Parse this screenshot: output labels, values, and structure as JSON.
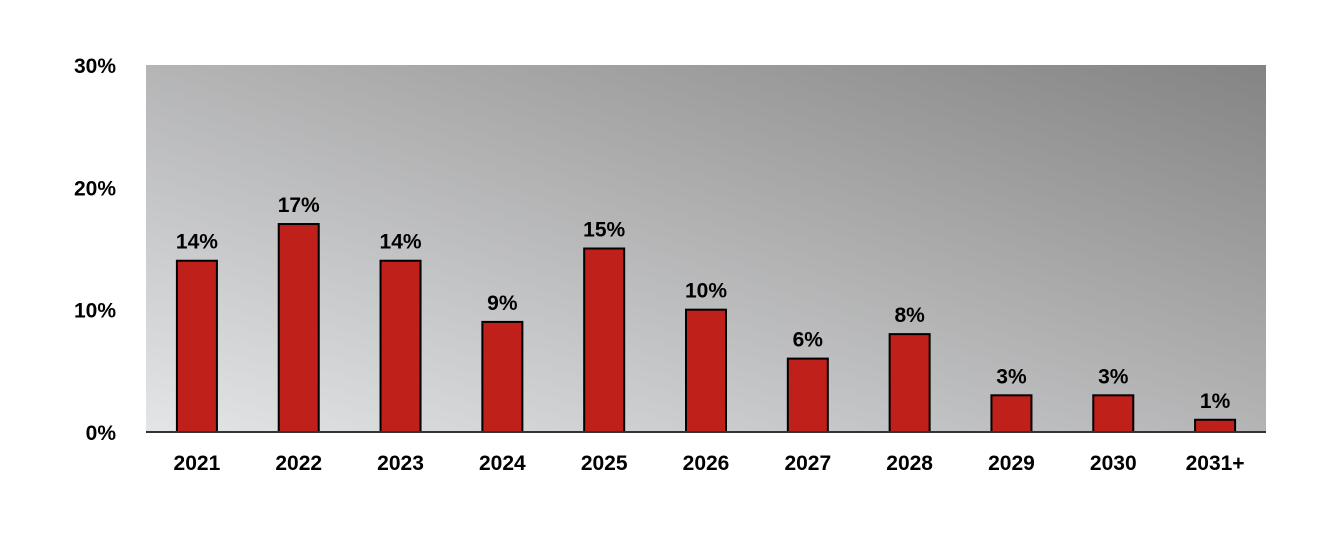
{
  "chart_data": {
    "type": "bar",
    "categories": [
      "2021",
      "2022",
      "2023",
      "2024",
      "2025",
      "2026",
      "2027",
      "2028",
      "2029",
      "2030",
      "2031+"
    ],
    "values": [
      14,
      17,
      14,
      9,
      15,
      10,
      6,
      8,
      3,
      3,
      1
    ],
    "data_labels": [
      "14%",
      "17%",
      "14%",
      "9%",
      "15%",
      "10%",
      "6%",
      "8%",
      "3%",
      "3%",
      "1%"
    ],
    "y_ticks": [
      0,
      10,
      20,
      30
    ],
    "y_tick_labels": [
      "0%",
      "10%",
      "20%",
      "30%"
    ],
    "ylim": [
      0,
      30
    ],
    "title": "",
    "xlabel": "",
    "ylabel": "",
    "grid": false,
    "legend": "none",
    "bar_color": "#c0201a",
    "bar_edge_color": "#000000",
    "plot_background": "gradient-gray"
  }
}
